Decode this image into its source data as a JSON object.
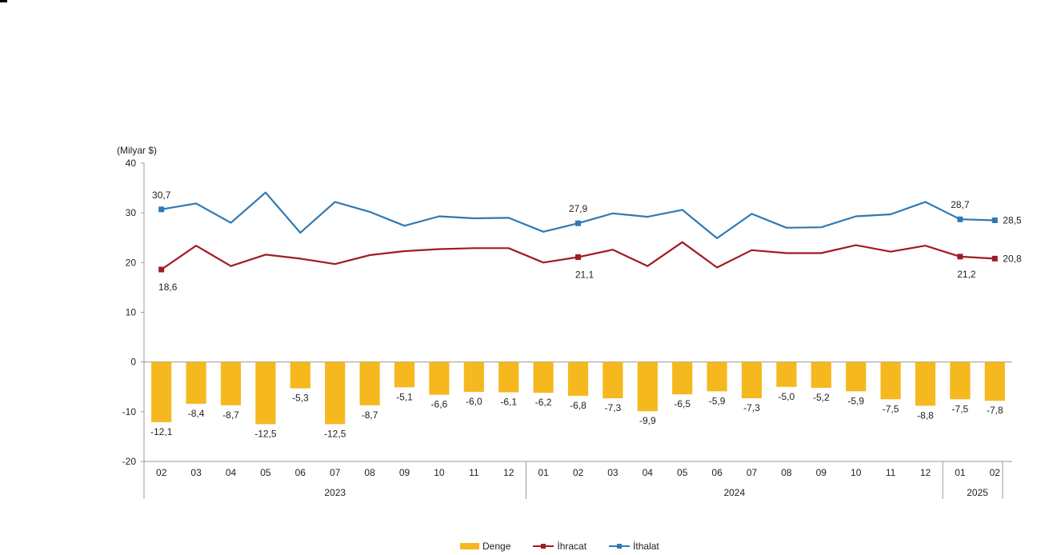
{
  "chart_data": {
    "type": "bar+line",
    "unit_label": "(Milyar $)",
    "ylim": [
      -20,
      40
    ],
    "yticks": [
      40,
      30,
      20,
      10,
      0,
      -10,
      -20
    ],
    "months": [
      "02",
      "03",
      "04",
      "05",
      "06",
      "07",
      "08",
      "09",
      "10",
      "11",
      "12",
      "01",
      "02",
      "03",
      "04",
      "05",
      "06",
      "07",
      "08",
      "09",
      "10",
      "11",
      "12",
      "01",
      "02"
    ],
    "years": [
      {
        "label": "2023",
        "start": 0,
        "end": 10
      },
      {
        "label": "2024",
        "start": 11,
        "end": 22
      },
      {
        "label": "2025",
        "start": 23,
        "end": 24
      }
    ],
    "series": [
      {
        "name": "Denge",
        "kind": "bar",
        "color": "#f5b81e",
        "values": [
          -12.1,
          -8.4,
          -8.7,
          -12.5,
          -5.3,
          -12.5,
          -8.7,
          -5.1,
          -6.6,
          -6.0,
          -6.1,
          -6.2,
          -6.8,
          -7.3,
          -9.9,
          -6.5,
          -5.9,
          -7.3,
          -5.0,
          -5.2,
          -5.9,
          -7.5,
          -8.8,
          -7.5,
          -7.8
        ],
        "labels": [
          "-12,1",
          "-8,4",
          "-8,7",
          "-12,5",
          "-5,3",
          "-12,5",
          "-8,7",
          "-5,1",
          "-6,6",
          "-6,0",
          "-6,1",
          "-6,2",
          "-6,8",
          "-7,3",
          "-9,9",
          "-6,5",
          "-5,9",
          "-7,3",
          "-5,0",
          "-5,2",
          "-5,9",
          "-7,5",
          "-8,8",
          "-7,5",
          "-7,8"
        ]
      },
      {
        "name": "İhracat",
        "kind": "line",
        "color": "#a01c22",
        "values": [
          18.6,
          23.4,
          19.3,
          21.6,
          20.8,
          19.7,
          21.5,
          22.3,
          22.7,
          22.9,
          22.9,
          20.0,
          21.1,
          22.6,
          19.3,
          24.1,
          19.0,
          22.5,
          21.9,
          21.9,
          23.5,
          22.2,
          23.4,
          21.2,
          20.8
        ],
        "markers": [
          0,
          12,
          23,
          24
        ],
        "labels": [
          {
            "index": 0,
            "text": "18,6",
            "pos": "below"
          },
          {
            "index": 12,
            "text": "21,1",
            "pos": "below"
          },
          {
            "index": 23,
            "text": "21,2",
            "pos": "below"
          },
          {
            "index": 24,
            "text": "20,8",
            "pos": "right"
          }
        ]
      },
      {
        "name": "İthalat",
        "kind": "line",
        "color": "#2e79b5",
        "values": [
          30.7,
          31.9,
          28.0,
          34.1,
          26.0,
          32.2,
          30.2,
          27.4,
          29.3,
          28.9,
          29.0,
          26.2,
          27.9,
          29.9,
          29.2,
          30.6,
          24.9,
          29.8,
          27.0,
          27.1,
          29.3,
          29.7,
          32.2,
          28.7,
          28.5
        ],
        "markers": [
          0,
          12,
          23,
          24
        ],
        "labels": [
          {
            "index": 0,
            "text": "30,7",
            "pos": "above"
          },
          {
            "index": 12,
            "text": "27,9",
            "pos": "above"
          },
          {
            "index": 23,
            "text": "28,7",
            "pos": "above"
          },
          {
            "index": 24,
            "text": "28,5",
            "pos": "right"
          }
        ]
      }
    ],
    "legend": [
      {
        "name": "Denge",
        "kind": "bar",
        "color": "#f5b81e"
      },
      {
        "name": "İhracat",
        "kind": "line",
        "color": "#a01c22"
      },
      {
        "name": "İthalat",
        "kind": "line",
        "color": "#2e79b5"
      }
    ],
    "legend_position": "bottom-center"
  }
}
